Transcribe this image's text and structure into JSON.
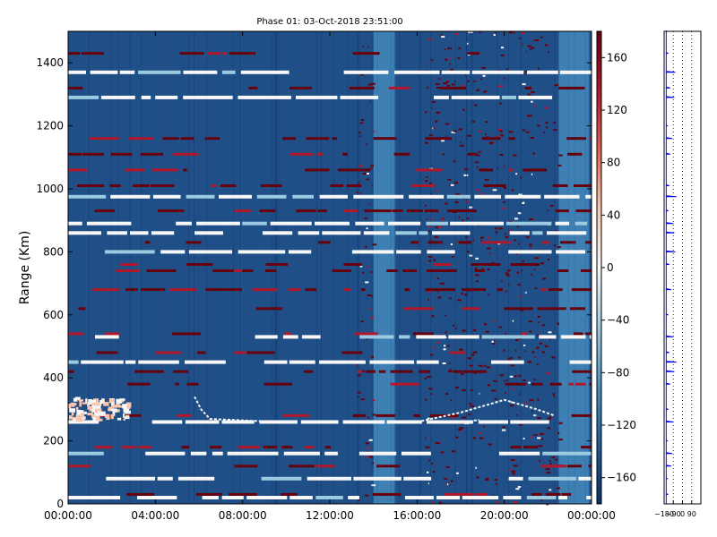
{
  "chart_data": [
    {
      "type": "heatmap",
      "title": "Phase 01: 03-Oct-2018 23:51:00",
      "ylabel": "Range (Km)",
      "xlabel": "",
      "x_ticks": [
        "00:00:00",
        "04:00:00",
        "08:00:00",
        "12:00:00",
        "16:00:00",
        "20:00:00",
        "00:00:00"
      ],
      "x_range_hours": [
        0,
        24
      ],
      "y_ticks": [
        0,
        200,
        400,
        600,
        800,
        1000,
        1200,
        1400
      ],
      "ylim": [
        0,
        1500
      ],
      "colorbar": {
        "ticks": [
          160,
          120,
          80,
          40,
          0,
          -40,
          -80,
          -120,
          -160
        ],
        "range": [
          -180,
          180
        ],
        "colormap": "RdBu_r",
        "colors": [
          "#08306b",
          "#1f5d9a",
          "#4a90c2",
          "#9ccae1",
          "#f7f7f7",
          "#fbc6ad",
          "#e0644f",
          "#b2182b",
          "#67000d"
        ]
      },
      "dominant_band": {
        "color_hex": "#1f4f86"
      },
      "light_columns": [
        {
          "x_hours": [
            14.0,
            15.0
          ],
          "note": ""
        },
        {
          "x_hours": [
            22.5,
            23.9
          ],
          "note": ""
        }
      ],
      "noisy_columns": [
        {
          "x_hours": [
            13.2,
            14.0
          ]
        },
        {
          "x_hours": [
            16.3,
            22.5
          ]
        }
      ],
      "white_rows_km": [
        20,
        80,
        160,
        260,
        450,
        530,
        800,
        860,
        890,
        975,
        1290,
        1370
      ],
      "red_rows_km": [
        30,
        120,
        180,
        280,
        380,
        420,
        480,
        540,
        620,
        680,
        740,
        760,
        830,
        930,
        1010,
        1060,
        1110,
        1160,
        1320,
        1430
      ],
      "features": {
        "salmon_patch": {
          "x_hours": [
            0.0,
            2.7
          ],
          "y_km": [
            270,
            340
          ]
        },
        "trail": [
          [
            5.8,
            340
          ],
          [
            6.1,
            300
          ],
          [
            6.5,
            270
          ],
          [
            8.0,
            265
          ],
          [
            9.0,
            262
          ]
        ],
        "arc": [
          [
            16.0,
            260
          ],
          [
            18.0,
            290
          ],
          [
            20.0,
            330
          ],
          [
            21.5,
            300
          ],
          [
            22.3,
            280
          ]
        ]
      }
    },
    {
      "type": "line",
      "title": "",
      "x_ticks": [
        -180,
        -90,
        0,
        90
      ],
      "x_tick_labels": [
        "−180",
        "−90",
        "0",
        "90"
      ],
      "xlim": [
        -180,
        180
      ],
      "ylim": [
        0,
        1500
      ],
      "line_color": "#0000ff",
      "baseline_x": -160,
      "profile": [
        [
          0,
          -160
        ],
        [
          30,
          -140
        ],
        [
          80,
          -150
        ],
        [
          120,
          -110
        ],
        [
          160,
          -100
        ],
        [
          200,
          -150
        ],
        [
          260,
          -90
        ],
        [
          300,
          -140
        ],
        [
          380,
          -120
        ],
        [
          420,
          -80
        ],
        [
          450,
          -60
        ],
        [
          480,
          -130
        ],
        [
          530,
          -90
        ],
        [
          600,
          -140
        ],
        [
          680,
          -110
        ],
        [
          760,
          -130
        ],
        [
          800,
          -70
        ],
        [
          860,
          -80
        ],
        [
          890,
          -90
        ],
        [
          930,
          -140
        ],
        [
          975,
          -60
        ],
        [
          1010,
          -130
        ],
        [
          1110,
          -120
        ],
        [
          1160,
          -100
        ],
        [
          1200,
          -150
        ],
        [
          1290,
          -80
        ],
        [
          1320,
          -120
        ],
        [
          1370,
          -70
        ],
        [
          1430,
          -140
        ],
        [
          1500,
          -160
        ]
      ]
    }
  ]
}
